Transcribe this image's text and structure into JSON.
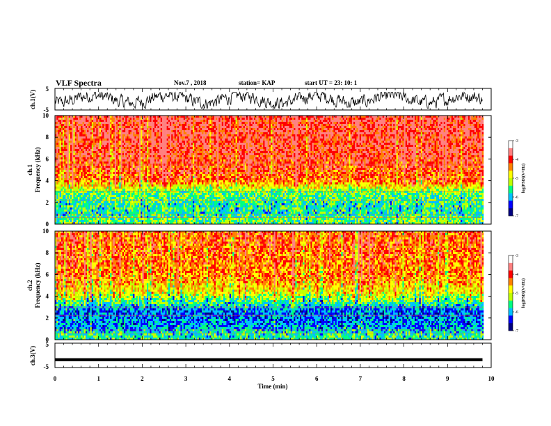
{
  "header": {
    "title": "VLF Spectra",
    "date": "Nov.7  , 2018",
    "station": "station= KAP",
    "start": "start  UT  =   23: 10: 1"
  },
  "colorbar": {
    "label": "log(PSD)(V²/Hz)",
    "ticks": [
      "-3",
      "-4",
      "-5",
      "-6",
      "-7"
    ],
    "range": [
      -7,
      -3
    ],
    "colors": [
      "#000080",
      "#0000ff",
      "#00c0ff",
      "#00ff80",
      "#c0ff00",
      "#ffff00",
      "#ff8000",
      "#ff0000",
      "#ff8080",
      "#ffffff"
    ]
  },
  "chart_data": [
    {
      "type": "line",
      "panel": "ch.1 waveform",
      "ylabel": "ch.1(V)",
      "ylim": [
        -5,
        5
      ],
      "yticks": [
        "5",
        "-5"
      ],
      "description_values": "noisy waveform fluctuating roughly between -4 and +3 V over 0–9.8 min"
    },
    {
      "type": "heatmap",
      "panel": "ch.1 spectrogram",
      "ylabel": "ch.1\nFrequency (kHz)",
      "ylabel_lines": [
        "ch.1",
        "Frequency  (kHz)"
      ],
      "ylim": [
        0,
        10
      ],
      "yticks": [
        "10",
        "8",
        "6",
        "4",
        "2",
        "0"
      ],
      "xlim": [
        0,
        10
      ],
      "data_end_min": 9.8,
      "value_range": [
        -7,
        -3
      ],
      "profile": [
        {
          "f": 0.5,
          "level": -5.3
        },
        {
          "f": 1.0,
          "level": -5.6
        },
        {
          "f": 2.0,
          "level": -5.5
        },
        {
          "f": 3.0,
          "level": -5.2
        },
        {
          "f": 4.0,
          "level": -4.0
        },
        {
          "f": 6.0,
          "level": -3.7
        },
        {
          "f": 8.0,
          "level": -3.6
        },
        {
          "f": 10.0,
          "level": -3.5
        }
      ]
    },
    {
      "type": "heatmap",
      "panel": "ch.2 spectrogram",
      "ylabel_lines": [
        "ch.2",
        "Frequency  (kHz)"
      ],
      "ylim": [
        0,
        10
      ],
      "yticks": [
        "10",
        "8",
        "6",
        "4",
        "2",
        "0"
      ],
      "xlim": [
        0,
        10
      ],
      "data_end_min": 9.8,
      "value_range": [
        -7,
        -3
      ],
      "profile": [
        {
          "f": 0.5,
          "level": -5.5
        },
        {
          "f": 1.0,
          "level": -5.9
        },
        {
          "f": 2.5,
          "level": -6.2
        },
        {
          "f": 3.0,
          "level": -5.8
        },
        {
          "f": 4.5,
          "level": -4.6
        },
        {
          "f": 6.0,
          "level": -4.1
        },
        {
          "f": 8.0,
          "level": -4.0
        },
        {
          "f": 10.0,
          "level": -3.9
        }
      ]
    },
    {
      "type": "line",
      "panel": "ch.3 waveform",
      "ylabel": "ch.3(V)",
      "ylim": [
        -5,
        5
      ],
      "yticks": [
        "5",
        "-5"
      ],
      "xlabel": "Time  (min)",
      "xlim": [
        0,
        10
      ],
      "xticks": [
        "0",
        "1",
        "2",
        "3",
        "4",
        "5",
        "6",
        "7",
        "8",
        "9",
        "10"
      ],
      "constant_level": -1.8,
      "data_end_min": 9.8
    }
  ]
}
